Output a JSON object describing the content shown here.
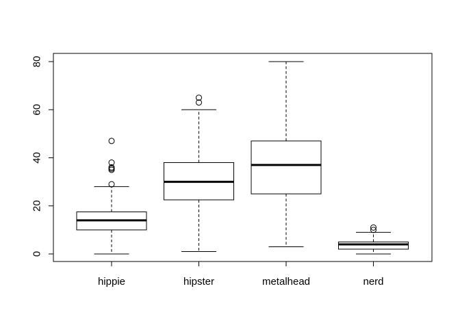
{
  "chart_data": {
    "type": "box",
    "categories": [
      "hippie",
      "hipster",
      "metalhead",
      "nerd"
    ],
    "boxes": [
      {
        "category": "hippie",
        "whisker_low": 0,
        "q1": 10,
        "median": 14,
        "q3": 17.5,
        "whisker_high": 28,
        "outliers": [
          29,
          35,
          35.5,
          36,
          38,
          47
        ]
      },
      {
        "category": "hipster",
        "whisker_low": 1,
        "q1": 22.5,
        "median": 30,
        "q3": 38,
        "whisker_high": 60,
        "outliers": [
          63,
          65
        ]
      },
      {
        "category": "metalhead",
        "whisker_low": 3,
        "q1": 25,
        "median": 37,
        "q3": 47,
        "whisker_high": 80,
        "outliers": []
      },
      {
        "category": "nerd",
        "whisker_low": 0,
        "q1": 2,
        "median": 4,
        "q3": 5,
        "whisker_high": 9,
        "outliers": [
          10,
          11
        ]
      }
    ],
    "yticks": [
      0,
      20,
      40,
      60,
      80
    ],
    "ylim": [
      -3,
      83
    ],
    "title": "",
    "xlabel": "",
    "ylabel": "",
    "grid": false,
    "colors": {
      "stroke": "#000000",
      "box_fill": "#ffffff"
    }
  }
}
